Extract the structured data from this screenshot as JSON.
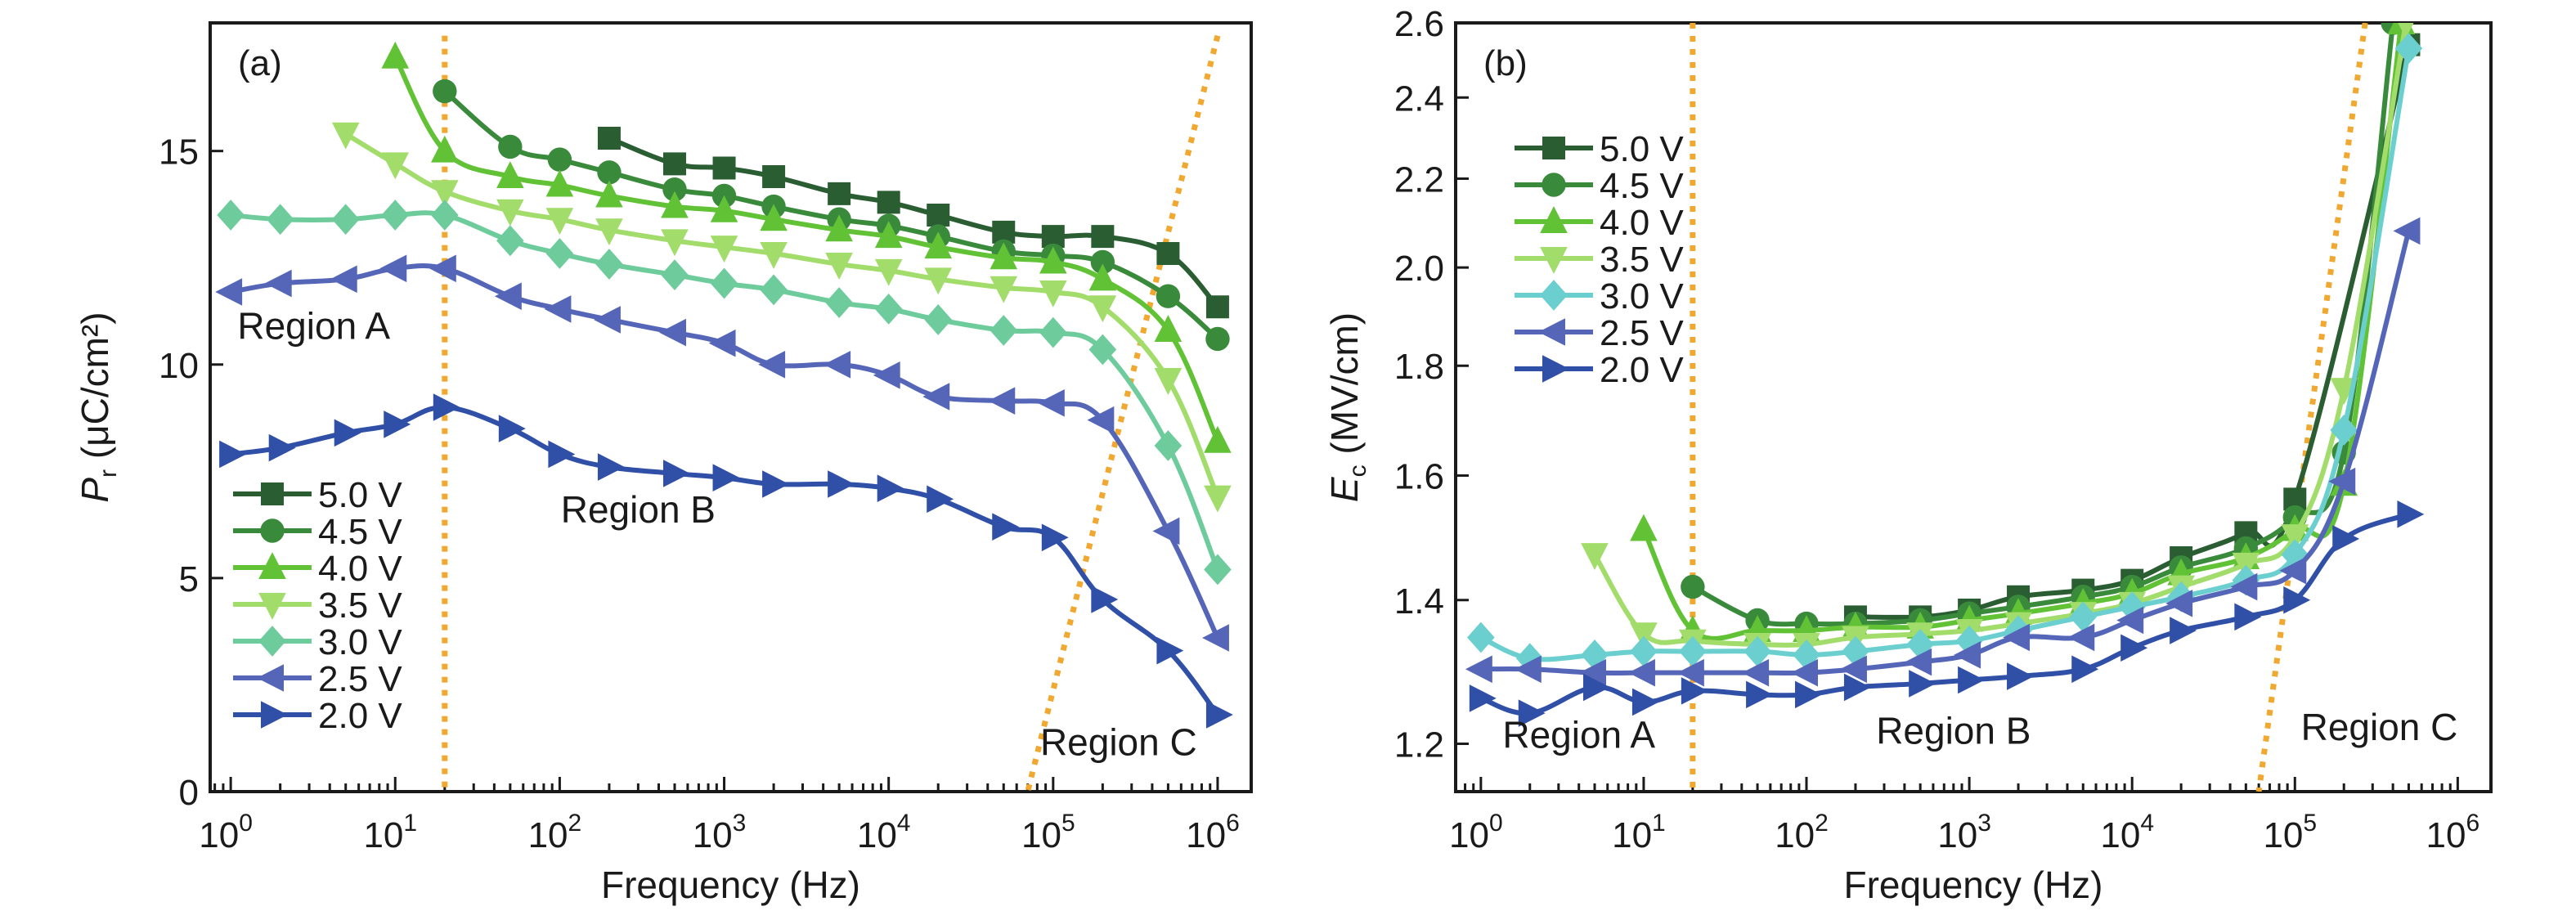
{
  "chart_data": [
    {
      "type": "line",
      "panel_label": "(a)",
      "xlabel": "Frequency (Hz)",
      "ylabel_main": "P",
      "ylabel_sub": "r",
      "ylabel_unit": " (μC/cm²)",
      "xscale": "log",
      "yscale": "linear",
      "xlim": [
        0.75,
        1600000
      ],
      "ylim": [
        0,
        18
      ],
      "xticks": [
        1,
        10,
        100,
        1000,
        10000,
        100000,
        1000000
      ],
      "xtick_exponents": [
        "0",
        "1",
        "2",
        "3",
        "4",
        "5",
        "6"
      ],
      "yticks": [
        0,
        5,
        10,
        15
      ],
      "ytick_labels": [
        "0",
        "5",
        "10",
        "15"
      ],
      "legend_position": "bottom-left",
      "region_labels": [
        {
          "text": "Region A",
          "x": 3.2,
          "y": 10.6
        },
        {
          "text": "Region B",
          "x": 300,
          "y": 6.3
        },
        {
          "text": "Region C",
          "x": 250000,
          "y": 0.85
        }
      ],
      "guides": [
        {
          "x1": 20,
          "y1": 17.7,
          "x2": 20,
          "y2": 0
        },
        {
          "x1": 1000000,
          "y1": 17.7,
          "x2": 70000,
          "y2": 0
        }
      ],
      "series": [
        {
          "name": "5.0 V",
          "color": "#2a5e32",
          "marker": "square",
          "x": [
            200,
            500,
            1000,
            2000,
            5000,
            10000,
            20000,
            50000,
            100000,
            200000,
            500000,
            1000000
          ],
          "y": [
            15.3,
            14.7,
            14.6,
            14.4,
            14.0,
            13.8,
            13.5,
            13.1,
            13.0,
            13.0,
            12.6,
            11.35
          ]
        },
        {
          "name": "4.5 V",
          "color": "#3a8a3c",
          "marker": "circle",
          "x": [
            20,
            50,
            100,
            200,
            500,
            1000,
            2000,
            5000,
            10000,
            20000,
            50000,
            100000,
            200000,
            500000,
            1000000
          ],
          "y": [
            16.4,
            15.1,
            14.8,
            14.5,
            14.1,
            13.95,
            13.7,
            13.4,
            13.25,
            13.0,
            12.65,
            12.55,
            12.4,
            11.6,
            10.6
          ]
        },
        {
          "name": "4.0 V",
          "color": "#62c236",
          "marker": "triangle-up",
          "x": [
            10,
            20,
            50,
            100,
            200,
            500,
            1000,
            2000,
            5000,
            10000,
            20000,
            50000,
            100000,
            200000,
            500000,
            1000000
          ],
          "y": [
            17.2,
            15.0,
            14.4,
            14.2,
            13.95,
            13.7,
            13.6,
            13.4,
            13.15,
            13.0,
            12.75,
            12.5,
            12.4,
            12.0,
            10.8,
            8.2
          ]
        },
        {
          "name": "3.5 V",
          "color": "#a2dc6a",
          "marker": "triangle-down",
          "x": [
            5,
            10,
            20,
            50,
            100,
            200,
            500,
            1000,
            2000,
            5000,
            10000,
            20000,
            50000,
            100000,
            200000,
            500000,
            1000000
          ],
          "y": [
            15.4,
            14.7,
            14.05,
            13.6,
            13.4,
            13.15,
            12.9,
            12.75,
            12.6,
            12.35,
            12.2,
            12.0,
            11.8,
            11.7,
            11.35,
            9.65,
            6.9
          ]
        },
        {
          "name": "3.0 V",
          "color": "#6ecb9c",
          "marker": "diamond",
          "x": [
            1,
            2,
            5,
            10,
            20,
            50,
            100,
            200,
            500,
            1000,
            2000,
            5000,
            10000,
            20000,
            50000,
            100000,
            200000,
            500000,
            1000000
          ],
          "y": [
            13.5,
            13.4,
            13.4,
            13.5,
            13.5,
            12.9,
            12.6,
            12.35,
            12.1,
            11.9,
            11.75,
            11.45,
            11.3,
            11.05,
            10.8,
            10.75,
            10.35,
            8.1,
            5.2
          ]
        },
        {
          "name": "2.5 V",
          "color": "#5566b8",
          "marker": "triangle-left",
          "x": [
            1,
            2,
            5,
            10,
            20,
            50,
            100,
            200,
            500,
            1000,
            2000,
            5000,
            10000,
            20000,
            50000,
            100000,
            200000,
            500000,
            1000000
          ],
          "y": [
            11.7,
            11.9,
            12.0,
            12.25,
            12.25,
            11.6,
            11.3,
            11.05,
            10.75,
            10.5,
            10.0,
            10.0,
            9.75,
            9.25,
            9.15,
            9.1,
            8.7,
            6.1,
            3.6
          ]
        },
        {
          "name": "2.0 V",
          "color": "#3050a8",
          "marker": "triangle-right",
          "x": [
            1,
            2,
            5,
            10,
            20,
            50,
            100,
            200,
            500,
            1000,
            2000,
            5000,
            10000,
            20000,
            50000,
            100000,
            200000,
            500000,
            1000000
          ],
          "y": [
            7.9,
            8.05,
            8.4,
            8.6,
            9.0,
            8.5,
            7.9,
            7.6,
            7.45,
            7.35,
            7.2,
            7.2,
            7.1,
            6.85,
            6.2,
            5.95,
            4.5,
            3.3,
            1.8
          ]
        }
      ]
    },
    {
      "type": "line",
      "panel_label": "(b)",
      "xlabel": "Frequency (Hz)",
      "ylabel_main": "E",
      "ylabel_sub": "c",
      "ylabel_unit": " (MV/cm)",
      "xscale": "log",
      "yscale": "log",
      "xlim": [
        0.7,
        1600000
      ],
      "ylim": [
        1.14,
        2.6
      ],
      "xticks": [
        1,
        10,
        100,
        1000,
        10000,
        100000,
        1000000
      ],
      "xtick_exponents": [
        "0",
        "1",
        "2",
        "3",
        "4",
        "5",
        "6"
      ],
      "yticks": [
        1.2,
        1.4,
        1.6,
        1.8,
        2.0,
        2.2,
        2.4,
        2.6
      ],
      "ytick_labels": [
        "1.2",
        "1.4",
        "1.6",
        "1.8",
        "2.0",
        "2.2",
        "2.4",
        "2.6"
      ],
      "legend_position": "top-left",
      "region_labels": [
        {
          "text": "Region A",
          "x": 4,
          "y": 1.195
        },
        {
          "text": "Region B",
          "x": 800,
          "y": 1.2
        },
        {
          "text": "Region C",
          "x": 330000,
          "y": 1.205
        }
      ],
      "guides": [
        {
          "x1": 20,
          "y1": 2.6,
          "x2": 20,
          "y2": 1.14
        },
        {
          "x1": 270000,
          "y1": 2.6,
          "x2": 60000,
          "y2": 1.14
        }
      ],
      "series": [
        {
          "name": "5.0 V",
          "color": "#2a5e32",
          "marker": "square",
          "x": [
            200,
            500,
            1000,
            2000,
            5000,
            10000,
            20000,
            50000,
            100000,
            500000
          ],
          "y": [
            1.375,
            1.375,
            1.385,
            1.405,
            1.415,
            1.43,
            1.465,
            1.505,
            1.56,
            2.54
          ]
        },
        {
          "name": "4.5 V",
          "color": "#3a8a3c",
          "marker": "circle",
          "x": [
            20,
            50,
            100,
            200,
            500,
            1000,
            2000,
            5000,
            10000,
            20000,
            50000,
            100000,
            200000,
            400000
          ],
          "y": [
            1.42,
            1.37,
            1.365,
            1.365,
            1.37,
            1.38,
            1.39,
            1.405,
            1.42,
            1.45,
            1.48,
            1.53,
            1.64,
            2.6
          ]
        },
        {
          "name": "4.0 V",
          "color": "#62c236",
          "marker": "triangle-up",
          "x": [
            10,
            20,
            50,
            100,
            200,
            500,
            1000,
            2000,
            5000,
            10000,
            20000,
            50000,
            100000,
            200000,
            450000
          ],
          "y": [
            1.51,
            1.355,
            1.355,
            1.355,
            1.36,
            1.36,
            1.37,
            1.38,
            1.395,
            1.41,
            1.44,
            1.465,
            1.51,
            1.585,
            2.6
          ]
        },
        {
          "name": "3.5 V",
          "color": "#a2dc6a",
          "marker": "triangle-down",
          "x": [
            5,
            10,
            20,
            50,
            100,
            200,
            500,
            1000,
            2000,
            5000,
            10000,
            20000,
            50000,
            100000,
            200000,
            480000
          ],
          "y": [
            1.47,
            1.35,
            1.34,
            1.335,
            1.335,
            1.345,
            1.35,
            1.355,
            1.365,
            1.38,
            1.395,
            1.42,
            1.455,
            1.5,
            1.755,
            2.6
          ]
        },
        {
          "name": "3.0 V",
          "color": "#6ccfcf",
          "marker": "diamond",
          "x": [
            1,
            2,
            5,
            10,
            20,
            50,
            100,
            200,
            500,
            1000,
            2000,
            5000,
            10000,
            20000,
            50000,
            100000,
            200000,
            500000
          ],
          "y": [
            1.345,
            1.315,
            1.32,
            1.325,
            1.325,
            1.325,
            1.32,
            1.325,
            1.335,
            1.34,
            1.355,
            1.375,
            1.39,
            1.405,
            1.43,
            1.47,
            1.68,
            2.53
          ]
        },
        {
          "name": "2.5 V",
          "color": "#5566b8",
          "marker": "triangle-left",
          "x": [
            1,
            2,
            5,
            10,
            20,
            50,
            100,
            200,
            500,
            1000,
            2000,
            5000,
            10000,
            20000,
            50000,
            100000,
            200000,
            500000
          ],
          "y": [
            1.3,
            1.3,
            1.295,
            1.295,
            1.295,
            1.295,
            1.295,
            1.3,
            1.31,
            1.32,
            1.345,
            1.345,
            1.37,
            1.395,
            1.42,
            1.445,
            1.59,
            2.08
          ]
        },
        {
          "name": "2.0 V",
          "color": "#3050a8",
          "marker": "triangle-right",
          "x": [
            1,
            2,
            5,
            10,
            20,
            50,
            100,
            200,
            500,
            1000,
            2000,
            5000,
            10000,
            20000,
            50000,
            100000,
            200000,
            500000
          ],
          "y": [
            1.26,
            1.24,
            1.275,
            1.255,
            1.27,
            1.265,
            1.265,
            1.275,
            1.28,
            1.285,
            1.29,
            1.3,
            1.33,
            1.355,
            1.375,
            1.4,
            1.495,
            1.535
          ]
        }
      ]
    }
  ],
  "guide_color": "#f0a830"
}
